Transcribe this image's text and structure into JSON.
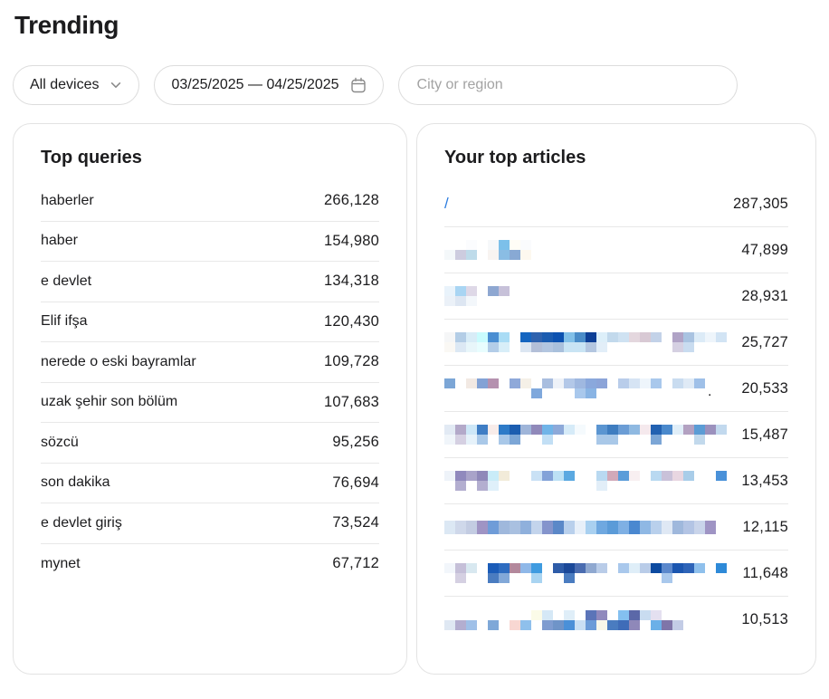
{
  "page_title": "Trending",
  "filters": {
    "device_label": "All devices",
    "device_icon": "chevron-down-icon",
    "date_range": "03/25/2025 — 04/25/2025",
    "date_icon": "calendar-icon",
    "region_placeholder": "City or region"
  },
  "colors": {
    "text": "#1c1c1e",
    "link": "#2b7cdf",
    "placeholder": "#a3a3a3",
    "pill_border": "#dcdcdc",
    "card_border": "#e3e3e3",
    "separator": "#e8e8e8",
    "icon_gray": "#8a8a8a"
  },
  "top_queries": {
    "title": "Top queries",
    "rows": [
      {
        "query": "haberler",
        "count": "266,128"
      },
      {
        "query": "haber",
        "count": "154,980"
      },
      {
        "query": "e devlet",
        "count": "134,318"
      },
      {
        "query": "Elif ifşa",
        "count": "120,430"
      },
      {
        "query": "nerede o eski bayramlar",
        "count": "109,728"
      },
      {
        "query": "uzak şehir son bölüm",
        "count": "107,683"
      },
      {
        "query": "sözcü",
        "count": "95,256"
      },
      {
        "query": "son dakika",
        "count": "76,694"
      },
      {
        "query": "e devlet giriş",
        "count": "73,524"
      },
      {
        "query": "mynet",
        "count": "67,712"
      }
    ]
  },
  "top_articles": {
    "title": "Your top articles",
    "rows": [
      {
        "title": "/",
        "count": "287,305",
        "redacted": false,
        "suffix": ""
      },
      {
        "title": "[redacted]",
        "count": "47,899",
        "redacted": true,
        "suffix": "",
        "mosaic": [
          [
            "",
            "",
            "#fbfcfe",
            "",
            "#f6f8fa",
            "#7cc0ea",
            "#fffdf6",
            "#fafbfd",
            ""
          ],
          [
            "#f4f8fa",
            "#cdccdf",
            "#bedbea",
            "",
            "#f8f4f1",
            "#8abde4",
            "#88a9d4",
            "#fdf8ef",
            ""
          ]
        ]
      },
      {
        "title": "[redacted]",
        "count": "28,931",
        "redacted": true,
        "suffix": "",
        "mosaic": [
          [
            "#e9f3fb",
            "#a9d5f3",
            "#ded8e7",
            "",
            "#8ea7d1",
            "#c7c1d9",
            ""
          ],
          [
            "#ebf1f8",
            "#dde6f2",
            "#f3f7fb",
            "",
            "",
            "",
            ""
          ]
        ]
      },
      {
        "title": "[redacted]",
        "count": "25,727",
        "redacted": true,
        "suffix": "",
        "mosaic": [
          [
            "#f5f6f7",
            "#b3cde6",
            "#d8ecf7",
            "#c9fbfd",
            "#4a8ed2",
            "#aadcf5",
            "",
            "#1565c0",
            "#2e62ae",
            "#1b5cb0",
            "#0d52b0",
            "#82c0e8",
            "#4a8cc8",
            "#0d3f96",
            "#ddeff9",
            "#c2d9ec",
            "#cfe2f2",
            "#e4d7de",
            "#d8c9d4",
            "#c3d2e8",
            "",
            "#b0a3c6",
            "#a9c3e1",
            "#dcebf7",
            "#eef5fb",
            "#d2e4f4"
          ],
          [
            "#faf8f4",
            "#dce8f4",
            "#e8f6fa",
            "#e8fdfe",
            "#b3cde8",
            "#d8eef8",
            "",
            "#dce6f2",
            "#b3bfd8",
            "#b3c6e0",
            "#a9c0dc",
            "#c9e4f4",
            "#c9e4f4",
            "#b3c6e0",
            "#e2eef8",
            "",
            "",
            "",
            "",
            "",
            "",
            "#d5d0e2",
            "#c9dcf0",
            "",
            "",
            ""
          ]
        ]
      },
      {
        "title": "[redacted]",
        "count": "20,533",
        "redacted": true,
        "suffix": ".",
        "mosaic": [
          [
            "#7ca6d6",
            "",
            "#f2e9e3",
            "#83a2d5",
            "#b591af",
            "",
            "#8fa9d9",
            "#f5f0e7",
            "",
            "#a9bedf",
            "#eef2f8",
            "#b3c8e8",
            "#9fb8e0",
            "#8aa8dc",
            "#8ca4d8",
            "",
            "#b9cdea",
            "#d6e4f4",
            "#eef5fb",
            "#a9c8ec",
            "",
            "#c9dcf0",
            "#dfeaf6",
            "#9fc0e8"
          ],
          [
            "",
            "",
            "",
            "",
            "",
            "",
            "",
            "",
            "#7fa8dc",
            "",
            "",
            "",
            "#a9c8ec",
            "#89b4e4",
            "",
            "",
            "",
            "",
            "",
            "",
            "",
            "",
            "",
            ""
          ]
        ]
      },
      {
        "title": "[redacted]",
        "count": "15,487",
        "redacted": true,
        "suffix": "",
        "mosaic": [
          [
            "#e2eaf4",
            "#b3a9c9",
            "#cde7f7",
            "#3f7dc4",
            "#f8ece9",
            "#2e7bc8",
            "#1b5db0",
            "#9fb5d9",
            "#9089ba",
            "#70b4e8",
            "#8da9d9",
            "#d6ebf8",
            "#f5fafd",
            "",
            "#5b95d1",
            "#3f7dc0",
            "#6b9dd5",
            "#8fb9e1",
            "#f5e9ed",
            "#2261b1",
            "#4a89cc",
            "#e0eef8",
            "#b3a1c1",
            "#5b9cd5",
            "#9b91bd",
            "#c2d9ee"
          ],
          [
            "#f0f5fa",
            "#d5d0e2",
            "#e6f2fa",
            "#a9c8e8",
            "",
            "#a9c8e8",
            "#7ca6d6",
            "",
            "",
            "#c2dff5",
            "",
            "",
            "",
            "",
            "#a9c8e8",
            "#a9c8e8",
            "",
            "",
            "",
            "#7ca6d6",
            "",
            "",
            "",
            "#c2d9ec",
            "",
            ""
          ]
        ]
      },
      {
        "title": "[redacted]",
        "count": "13,453",
        "redacted": true,
        "suffix": "",
        "mosaic": [
          [
            "#eef3f9",
            "#9089bd",
            "#a9a3c9",
            "#8f88b9",
            "#c9ecf8",
            "#f2ebd9",
            "",
            "",
            "#c9e1f5",
            "#83a2d8",
            "#bce1f5",
            "#5ba9e1",
            "",
            "",
            "#b9d9f1",
            "#d1a9b9",
            "#5b9cd9",
            "#f8eff1",
            "",
            "#b9d9f1",
            "#c9c1d9",
            "#e8d6e1",
            "#a9cde9",
            "",
            "",
            "#4a91d9"
          ],
          [
            "",
            "#b3aed0",
            "",
            "#b3aed0",
            "#dff0fa",
            "",
            "",
            "",
            "",
            "",
            "",
            "",
            "",
            "",
            "#e2eef8",
            "",
            "",
            "",
            "",
            "",
            "",
            "",
            "",
            "",
            "",
            ""
          ]
        ]
      },
      {
        "title": "[redacted]",
        "count": "12,115",
        "redacted": true,
        "suffix": "",
        "mosaic": [
          [
            "#dce8f4",
            "#cfd8ea",
            "#c3cce2",
            "#9f94c4",
            "#6f9cd8",
            "#9fb8dc",
            "#a9c0e0",
            "#8fb0dc",
            "#c3d4ec",
            "#8494cc",
            "#5b88c8",
            "#b9d0ec",
            "#e8f0f9",
            "#a9d0f0",
            "#6fa8e0",
            "#5b9bd8",
            "#7fb0e4",
            "#4a88d0",
            "#8fb8e4",
            "#b9d0ec",
            "#dfe8f4",
            "#9fb8dc",
            "#b3c4e4",
            "#c9d4ea",
            "#9f94c4"
          ]
        ]
      },
      {
        "title": "[redacted]",
        "count": "11,648",
        "redacted": true,
        "suffix": "",
        "mosaic": [
          [
            "#f2f6fb",
            "#c5bfd8",
            "#d8e8f0",
            "",
            "#1b5cb8",
            "#2e6cc0",
            "#b3889c",
            "#8fb8e8",
            "#3f9be0",
            "",
            "#2e5ca8",
            "#1b4898",
            "#4a6cb0",
            "#8fa8d0",
            "#b9cce8",
            "",
            "#a9c8ec",
            "#dfeef8",
            "#b9cce8",
            "#0d4aa0",
            "#5b88cc",
            "#1b56b0",
            "#2e64b8",
            "#8fc0ec",
            "",
            "#2e8ad8"
          ],
          [
            "",
            "#d5d0e2",
            "",
            "",
            "#4a7cc0",
            "#82a8d8",
            "",
            "",
            "#a9d4f1",
            "",
            "",
            "#4a7cc0",
            "",
            "",
            "",
            "",
            "",
            "",
            "",
            "",
            "#a9c8ec",
            "",
            "",
            "",
            "",
            ""
          ]
        ]
      },
      {
        "title": "[redacted]",
        "count": "10,513",
        "redacted": true,
        "suffix": "",
        "mosaic": [
          [
            "",
            "",
            "",
            "",
            "",
            "",
            "",
            "",
            "#fbfbe8",
            "#d5e8f6",
            "",
            "#dfeef8",
            "",
            "#5b74b8",
            "#9089bd",
            "",
            "#84c0f0",
            "#5b68a8",
            "#c9dcf0",
            "#e4e0f0",
            "",
            "",
            ""
          ],
          [
            "#dfe8f3",
            "#b3aed0",
            "#9fc0e8",
            "",
            "#7fa8d8",
            "",
            "#f8d7d2",
            "#8fc0ec",
            "",
            "#7f9cd0",
            "#6f94c8",
            "#4a90d8",
            "#c9e0f4",
            "#6b9cd8",
            "#f7f7e9",
            "#4a7cc0",
            "#3f6cb8",
            "#8f88b9",
            "",
            "#6bb0e8",
            "#7f75a9",
            "#c3cce6",
            ""
          ]
        ]
      }
    ]
  }
}
